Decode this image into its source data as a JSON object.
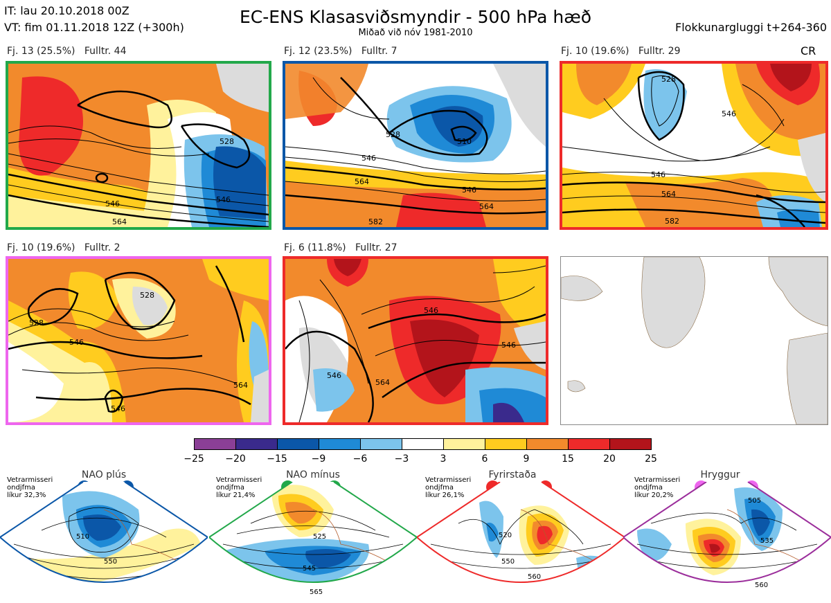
{
  "header": {
    "it": "IT: lau 20.10.2018 00Z",
    "vt": "VT: fim 01.11.2018 12Z  (+300h)",
    "title": "EC-ENS Klasasviðsmyndir - 500 hPa hæð",
    "subtitle": "Miðað við nóv 1981-2010",
    "window": "Flokkunargluggi t+264-360"
  },
  "panels": [
    {
      "label": "Fj. 13 (25.5%)",
      "rep": "Fulltr. 44",
      "frame_color": "#22a84a",
      "tag": "",
      "contours": [
        "528",
        "546",
        "546",
        "564"
      ]
    },
    {
      "label": "Fj. 12 (23.5%)",
      "rep": "Fulltr. 7",
      "frame_color": "#0b57a8",
      "tag": "",
      "contours": [
        "510",
        "528",
        "546",
        "564",
        "546",
        "564",
        "582"
      ]
    },
    {
      "label": "Fj. 10 (19.6%)",
      "rep": "Fulltr. 29",
      "frame_color": "#ee2a2a",
      "tag": "CR",
      "contours": [
        "528",
        "546",
        "564",
        "582",
        "546"
      ]
    },
    {
      "label": "Fj. 10 (19.6%)",
      "rep": "Fulltr. 2",
      "frame_color": "#ee66ee",
      "tag": "",
      "contours": [
        "528",
        "528",
        "546",
        "564",
        "546"
      ]
    },
    {
      "label": "Fj. 6 (11.8%)",
      "rep": "Fulltr. 27",
      "frame_color": "#ee2a2a",
      "tag": "",
      "contours": [
        "546",
        "564",
        "546",
        "546"
      ]
    }
  ],
  "colorbar": {
    "ticks": [
      "−25",
      "−20",
      "−15",
      "−9",
      "−6",
      "−3",
      "3",
      "6",
      "9",
      "15",
      "20",
      "25"
    ],
    "colors": [
      "#8b3f96",
      "#3a2a8c",
      "#0b57a8",
      "#1f8ad6",
      "#7cc4ec",
      "#ffffff",
      "#fff29c",
      "#ffcc1f",
      "#f28a2c",
      "#ee2a2a",
      "#b3141b"
    ]
  },
  "regimes": [
    {
      "name": "NAO plús",
      "season": "Vetrarmisseri",
      "months": "ondjfma",
      "prob": "líkur 32,3%",
      "color": "#0b57a8",
      "contours": [
        "510",
        "550"
      ]
    },
    {
      "name": "NAO mínus",
      "season": "Vetrarmisseri",
      "months": "ondjfma",
      "prob": "líkur 21,4%",
      "color": "#22a84a",
      "contours": [
        "525",
        "545",
        "565"
      ]
    },
    {
      "name": "Fyrirstaða",
      "season": "Vetrarmisseri",
      "months": "ondjfma",
      "prob": "líkur 26,1%",
      "color": "#ee2a2a",
      "contours": [
        "520",
        "550",
        "560"
      ]
    },
    {
      "name": "Hryggur",
      "season": "Vetrarmisseri",
      "months": "ondjfma",
      "prob": "líkur 20,2%",
      "color": "#9b2e9b",
      "contours": [
        "505",
        "535",
        "560"
      ]
    }
  ]
}
